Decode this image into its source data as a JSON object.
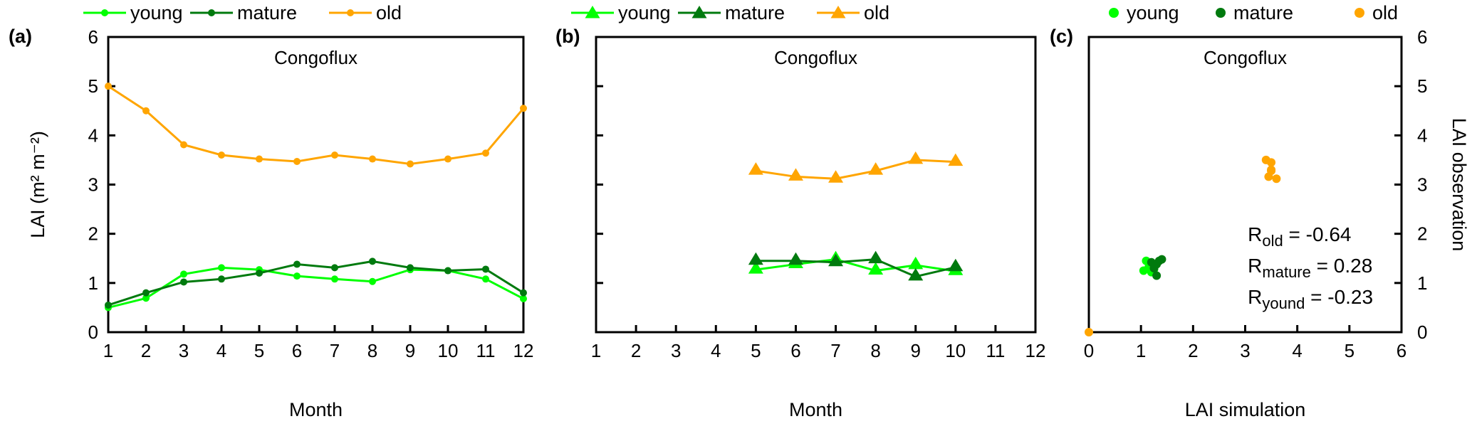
{
  "colors": {
    "young": "#00ff00",
    "mature": "#007a0e",
    "old": "#ffa500"
  },
  "chart_data": [
    {
      "panel": "(a)",
      "type": "line",
      "marker": "circle",
      "title": "Congoflux",
      "xlabel": "Month",
      "ylabel": "LAI (m² m⁻²)",
      "xlim": [
        1,
        12
      ],
      "ylim": [
        0,
        6
      ],
      "xticks": [
        1,
        2,
        3,
        4,
        5,
        6,
        7,
        8,
        9,
        10,
        11,
        12
      ],
      "yticks": [
        0,
        1,
        2,
        3,
        4,
        5,
        6
      ],
      "legend": "top",
      "x": [
        1,
        2,
        3,
        4,
        5,
        6,
        7,
        8,
        9,
        10,
        11,
        12
      ],
      "series": [
        {
          "name": "young",
          "values": [
            0.5,
            0.69,
            1.18,
            1.31,
            1.27,
            1.14,
            1.08,
            1.03,
            1.27,
            1.25,
            1.08,
            0.68
          ]
        },
        {
          "name": "mature",
          "values": [
            0.55,
            0.8,
            1.02,
            1.08,
            1.2,
            1.38,
            1.31,
            1.44,
            1.31,
            1.25,
            1.28,
            0.8
          ]
        },
        {
          "name": "old",
          "values": [
            5.0,
            4.5,
            3.81,
            3.6,
            3.52,
            3.47,
            3.6,
            3.52,
            3.42,
            3.52,
            3.64,
            4.55
          ]
        }
      ]
    },
    {
      "panel": "(b)",
      "type": "line",
      "marker": "triangle",
      "title": "Congoflux",
      "xlabel": "Month",
      "xlim": [
        1,
        12
      ],
      "ylim": [
        0,
        6
      ],
      "xticks": [
        1,
        2,
        3,
        4,
        5,
        6,
        7,
        8,
        9,
        10,
        11,
        12
      ],
      "legend": "top",
      "x": [
        5,
        6,
        7,
        8,
        9,
        10
      ],
      "series": [
        {
          "name": "young",
          "values": [
            1.27,
            1.38,
            1.48,
            1.25,
            1.36,
            1.24
          ]
        },
        {
          "name": "mature",
          "values": [
            1.45,
            1.45,
            1.42,
            1.48,
            1.13,
            1.32
          ]
        },
        {
          "name": "old",
          "values": [
            3.28,
            3.16,
            3.12,
            3.28,
            3.5,
            3.46
          ]
        }
      ]
    },
    {
      "panel": "(c)",
      "type": "scatter",
      "title": "Congoflux",
      "xlabel": "LAI simulation",
      "ylabel": "LAI observation",
      "xlim": [
        0,
        6
      ],
      "ylim": [
        0,
        6
      ],
      "xticks": [
        0,
        1,
        2,
        3,
        4,
        5,
        6
      ],
      "yticks": [
        0,
        1,
        2,
        3,
        4,
        5,
        6
      ],
      "legend": "top",
      "series": [
        {
          "name": "young",
          "points": [
            [
              1.1,
              1.45
            ],
            [
              1.05,
              1.25
            ],
            [
              1.2,
              1.35
            ],
            [
              1.25,
              1.28
            ],
            [
              1.2,
              1.22
            ],
            [
              1.15,
              1.32
            ]
          ]
        },
        {
          "name": "mature",
          "points": [
            [
              1.2,
              1.42
            ],
            [
              1.3,
              1.38
            ],
            [
              1.35,
              1.45
            ],
            [
              1.4,
              1.48
            ],
            [
              1.3,
              1.15
            ],
            [
              1.25,
              1.3
            ]
          ]
        },
        {
          "name": "old",
          "points": [
            [
              3.4,
              3.5
            ],
            [
              3.5,
              3.45
            ],
            [
              3.5,
              3.3
            ],
            [
              3.45,
              3.16
            ],
            [
              3.6,
              3.12
            ],
            [
              3.5,
              3.28
            ],
            [
              0.0,
              0.0
            ]
          ]
        }
      ],
      "annotations": [
        {
          "sym": "R",
          "sub": "old",
          "text": " = -0.64"
        },
        {
          "sym": "R",
          "sub": "mature",
          "text": " = 0.28"
        },
        {
          "sym": "R",
          "sub": "yound",
          "text": " = -0.23"
        }
      ]
    }
  ]
}
